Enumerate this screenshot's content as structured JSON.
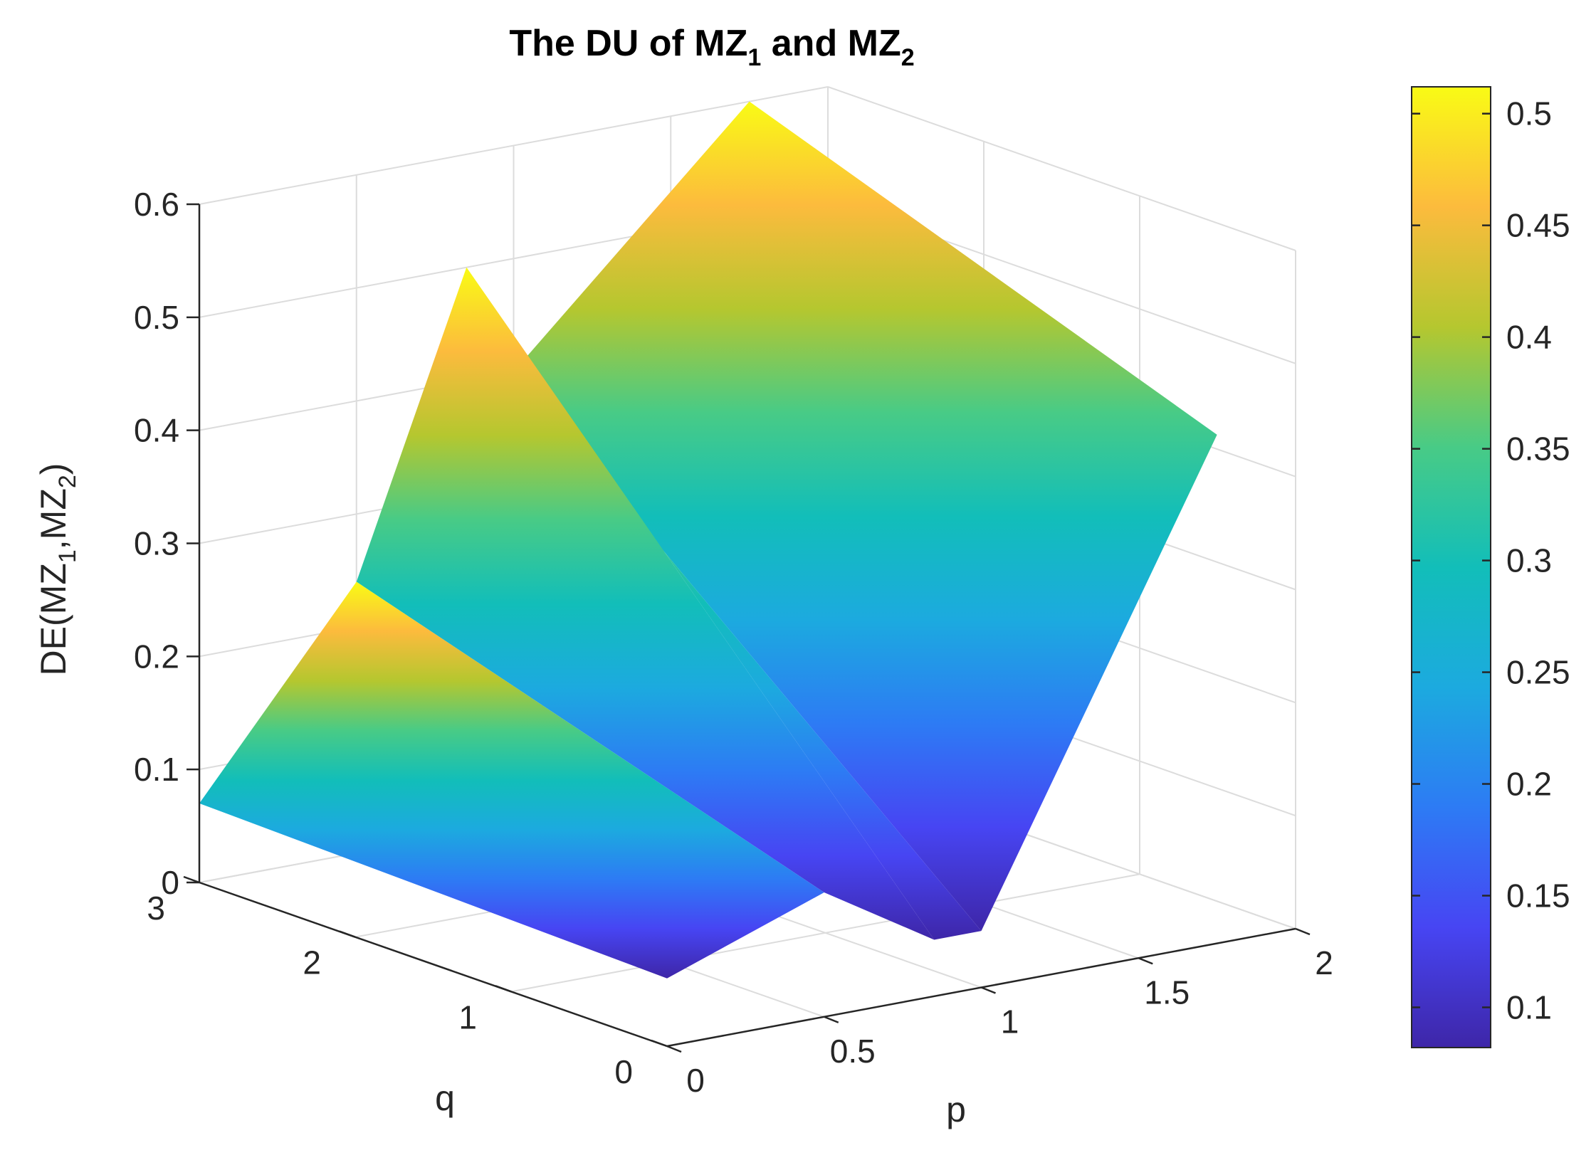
{
  "chart_data": {
    "type": "surface",
    "title": "The DU of MZ",
    "title_sub1": "1",
    "title_mid": " and MZ",
    "title_sub2": "2",
    "xlabel": "p",
    "ylabel": "q",
    "zlabel": "DE(MZ",
    "zlabel_sub1": "1",
    "zlabel_mid": ",MZ",
    "zlabel_sub2": "2",
    "zlabel_end": ")",
    "xlim": [
      0,
      2
    ],
    "ylim": [
      0,
      3
    ],
    "zlim": [
      0,
      0.6
    ],
    "xticks": [
      "0",
      "0.5",
      "1",
      "1.5",
      "2"
    ],
    "yticks": [
      "0",
      "1",
      "2",
      "3"
    ],
    "zticks": [
      "0",
      "0.1",
      "0.2",
      "0.3",
      "0.4",
      "0.5",
      "0.6"
    ],
    "grid": true,
    "colormap": "parula",
    "colorbar": {
      "position": "right",
      "ticks": [
        "0.1",
        "0.15",
        "0.2",
        "0.25",
        "0.3",
        "0.35",
        "0.4",
        "0.45",
        "0.5"
      ],
      "range": [
        0.082,
        0.512
      ]
    },
    "surface": {
      "p": [
        0,
        0.5,
        0.85,
        1,
        1.75
      ],
      "q": [
        0,
        3
      ],
      "z_at_q0": [
        0.06,
        0.11,
        0.05,
        0.05,
        0.45
      ],
      "z_at_q3": [
        0.07,
        0.24,
        0.5,
        0.4,
        0.6
      ]
    }
  }
}
